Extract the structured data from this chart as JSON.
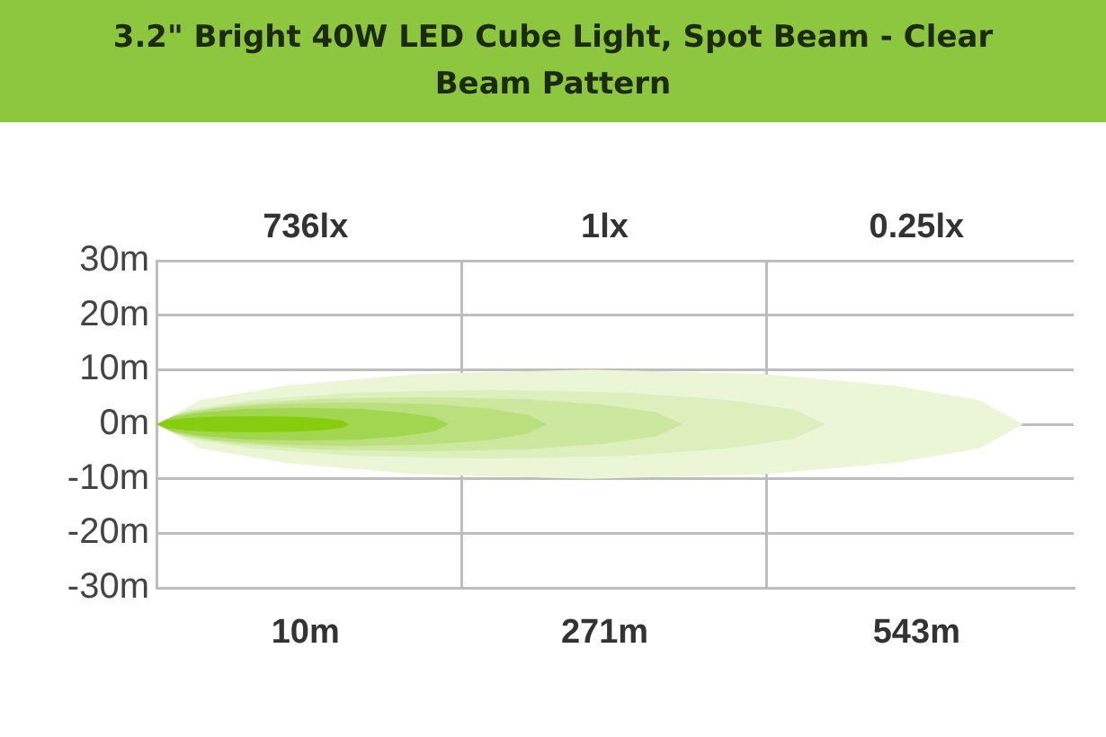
{
  "chart_data": {
    "type": "area",
    "title": "3.2\" Bright 40W LED Cube Light, Spot Beam - Clear Beam Pattern",
    "annotations": [
      "736lx",
      "1lx",
      "0.25lx"
    ],
    "xlim": [
      -120,
      680
    ],
    "xticks": [
      {
        "value": 10,
        "label": "10m"
      },
      {
        "value": 146,
        "label": null
      },
      {
        "value": 271,
        "label": "271m"
      },
      {
        "value": 412,
        "label": null
      },
      {
        "value": 543,
        "label": "543m"
      }
    ],
    "ylim": [
      -30,
      30
    ],
    "yticks": [
      {
        "value": -30,
        "label": "-30m"
      },
      {
        "value": -20,
        "label": "-20m"
      },
      {
        "value": -10,
        "label": "-10m"
      },
      {
        "value": 0,
        "label": "0m"
      },
      {
        "value": 10,
        "label": "10m"
      },
      {
        "value": 20,
        "label": "20m"
      },
      {
        "value": 30,
        "label": "30m"
      }
    ],
    "grid": true,
    "legend": false,
    "marker": "none",
    "series": [
      {
        "color": "#eaf6d6",
        "x": [
          -120,
          -82,
          -7,
          107,
          258,
          409,
          523,
          598,
          636,
          598,
          523,
          409,
          258,
          107,
          -7,
          -82,
          -120
        ],
        "values": [
          0,
          4.4,
          7.1,
          9.2,
          10,
          9.2,
          7.1,
          4.4,
          0,
          -4.4,
          -7.1,
          -9.2,
          -10,
          -9.2,
          -7.1,
          -4.4,
          0
        ]
      },
      {
        "color": "#dcefbd",
        "x": [
          -120,
          -91,
          -32,
          55,
          172,
          289,
          376,
          435,
          464,
          435,
          376,
          289,
          172,
          55,
          -32,
          -91,
          -120
        ],
        "values": [
          0,
          2.7,
          4.5,
          5.8,
          6.3,
          5.8,
          4.5,
          2.7,
          0,
          -2.7,
          -4.5,
          -5.8,
          -6.3,
          -5.8,
          -4.5,
          -2.7,
          0
        ]
      },
      {
        "color": "#cbe89e",
        "x": [
          -120,
          -97,
          -51,
          18,
          110,
          201,
          270,
          316,
          339,
          316,
          270,
          201,
          110,
          18,
          -51,
          -97,
          -120
        ],
        "values": [
          0,
          2.2,
          3.6,
          4.6,
          5,
          4.6,
          3.6,
          2.2,
          0,
          -2.2,
          -3.6,
          -4.6,
          -5,
          -4.6,
          -3.6,
          -2.2,
          0
        ]
      },
      {
        "color": "#b9e07c",
        "x": [
          -120,
          -103,
          -69,
          -18,
          51,
          119,
          170,
          204,
          221,
          204,
          170,
          119,
          51,
          -18,
          -69,
          -103,
          -120
        ],
        "values": [
          0,
          1.7,
          2.9,
          3.7,
          4,
          3.7,
          2.9,
          1.7,
          0,
          -1.7,
          -2.9,
          -3.7,
          -4,
          -3.7,
          -2.9,
          -1.7,
          0
        ]
      },
      {
        "color": "#a3d650",
        "x": [
          -120,
          -107,
          -82,
          -44,
          8,
          59,
          97,
          122,
          135,
          122,
          97,
          59,
          8,
          -44,
          -82,
          -107,
          -120
        ],
        "values": [
          0,
          1.3,
          2.1,
          2.8,
          3,
          2.8,
          2.1,
          1.3,
          0,
          -1.3,
          -2.1,
          -2.8,
          -3,
          -2.8,
          -2.1,
          -1.3,
          0
        ]
      },
      {
        "color": "#88cc10",
        "x": [
          -120,
          -112,
          -95,
          -69,
          -36,
          -2,
          24,
          41,
          49,
          41,
          24,
          -2,
          -36,
          -69,
          -95,
          -112,
          -120
        ],
        "values": [
          0,
          0.7,
          1.1,
          1.4,
          1.5,
          1.4,
          1.1,
          0.7,
          0,
          -0.7,
          -1.1,
          -1.4,
          -1.5,
          -1.4,
          -1.1,
          -0.7,
          0
        ]
      }
    ]
  }
}
